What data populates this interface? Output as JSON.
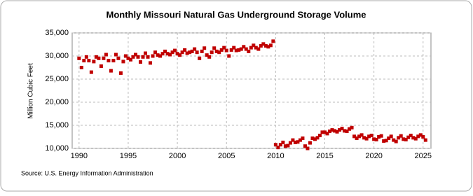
{
  "chart_data": {
    "type": "scatter",
    "title": "Monthly Missouri Natural Gas Underground Storage Volume",
    "y_label": "Million Cubic Feet",
    "source": "Source: U.S. Energy Information Administration",
    "color": "#c00000",
    "grid": true,
    "xlim": [
      1989.3,
      2025.8
    ],
    "ylim": [
      10000,
      35000
    ],
    "xticks": [
      1990,
      1995,
      2000,
      2005,
      2010,
      2015,
      2020,
      2025
    ],
    "yticks": [
      {
        "value": 10000,
        "label": "10,000"
      },
      {
        "value": 15000,
        "label": "15,000"
      },
      {
        "value": 20000,
        "label": "20,000"
      },
      {
        "value": 25000,
        "label": "25,000"
      },
      {
        "value": 30000,
        "label": "30,000"
      },
      {
        "value": 35000,
        "label": "35,000"
      }
    ],
    "x": [
      1990,
      1990.25,
      1990.5,
      1990.75,
      1991,
      1991.25,
      1991.5,
      1991.75,
      1992,
      1992.25,
      1992.5,
      1992.75,
      1993,
      1993.25,
      1993.5,
      1993.75,
      1994,
      1994.25,
      1994.5,
      1994.75,
      1995,
      1995.25,
      1995.5,
      1995.75,
      1996,
      1996.25,
      1996.5,
      1996.75,
      1997,
      1997.25,
      1997.5,
      1997.75,
      1998,
      1998.25,
      1998.5,
      1998.75,
      1999,
      1999.25,
      1999.5,
      1999.75,
      2000,
      2000.25,
      2000.5,
      2000.75,
      2001,
      2001.25,
      2001.5,
      2001.75,
      2002,
      2002.25,
      2002.5,
      2002.75,
      2003,
      2003.25,
      2003.5,
      2003.75,
      2004,
      2004.25,
      2004.5,
      2004.75,
      2005,
      2005.25,
      2005.5,
      2005.75,
      2006,
      2006.25,
      2006.5,
      2006.75,
      2007,
      2007.25,
      2007.5,
      2007.75,
      2008,
      2008.25,
      2008.5,
      2008.75,
      2009,
      2009.25,
      2009.5,
      2009.75,
      2010,
      2010.25,
      2010.5,
      2010.75,
      2011,
      2011.25,
      2011.5,
      2011.75,
      2012,
      2012.25,
      2012.5,
      2012.75,
      2013,
      2013.25,
      2013.5,
      2013.75,
      2014,
      2014.25,
      2014.5,
      2014.75,
      2015,
      2015.25,
      2015.5,
      2015.75,
      2016,
      2016.25,
      2016.5,
      2016.75,
      2017,
      2017.25,
      2017.5,
      2017.75,
      2018,
      2018.25,
      2018.5,
      2018.75,
      2019,
      2019.25,
      2019.5,
      2019.75,
      2020,
      2020.25,
      2020.5,
      2020.75,
      2021,
      2021.25,
      2021.5,
      2021.75,
      2022,
      2022.25,
      2022.5,
      2022.75,
      2023,
      2023.25,
      2023.5,
      2023.75,
      2024,
      2024.25,
      2024.5,
      2024.75,
      2025,
      2025.25
    ],
    "values": [
      29500,
      27500,
      29000,
      29800,
      29000,
      26500,
      28800,
      29800,
      29500,
      27800,
      29500,
      30300,
      29000,
      26800,
      29000,
      30300,
      29500,
      26300,
      28800,
      30000,
      29500,
      29200,
      29800,
      30300,
      29800,
      28700,
      29800,
      30600,
      29800,
      28500,
      30000,
      30800,
      30200,
      30000,
      30500,
      31000,
      30500,
      30300,
      30800,
      31200,
      30500,
      30200,
      30800,
      31300,
      30600,
      30800,
      31000,
      31500,
      30800,
      29500,
      31000,
      31700,
      30200,
      29800,
      30800,
      31700,
      31000,
      30800,
      31300,
      31800,
      31200,
      30000,
      31300,
      31800,
      31200,
      31300,
      31500,
      32000,
      31500,
      31000,
      31800,
      32300,
      31800,
      31500,
      32200,
      32600,
      32200,
      32000,
      32300,
      33200,
      10800,
      10200,
      10800,
      11300,
      10500,
      10600,
      11200,
      11800,
      11300,
      11400,
      11800,
      12200,
      10500,
      10000,
      11200,
      12200,
      12000,
      12300,
      12800,
      13500,
      13500,
      13200,
      13700,
      14000,
      13800,
      13600,
      14000,
      14300,
      13800,
      13700,
      14200,
      14500,
      12600,
      12200,
      12600,
      12900,
      12300,
      12100,
      12600,
      12800,
      12000,
      11900,
      12500,
      12700,
      11600,
      11700,
      12200,
      12600,
      11800,
      11500,
      12300,
      12700,
      12000,
      11900,
      12400,
      12800,
      12300,
      12100,
      12600,
      12900,
      12500,
      11800
    ]
  }
}
